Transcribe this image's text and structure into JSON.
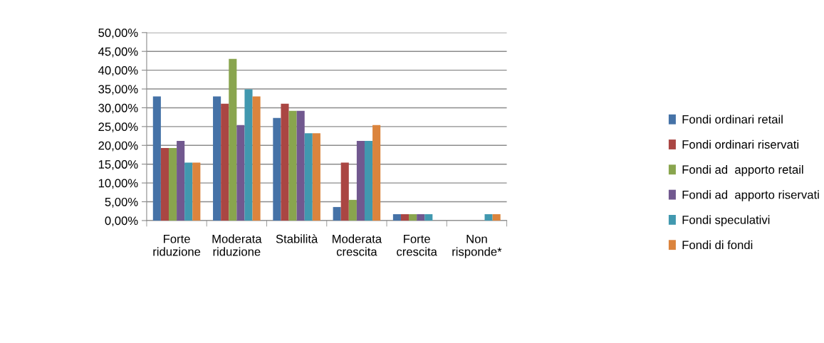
{
  "chart_data": {
    "type": "bar",
    "categories": [
      "Forte\nriduzione",
      "Moderata\nriduzione",
      "Stabilità",
      "Moderata\ncrescita",
      "Forte\ncrescita",
      "Non\nrisponde*"
    ],
    "series": [
      {
        "name": "Fondi ordinari retail",
        "color": "#4572a7",
        "values": [
          33.0,
          33.0,
          27.3,
          3.6,
          1.7,
          0
        ]
      },
      {
        "name": "Fondi ordinari riservati",
        "color": "#aa4643",
        "values": [
          19.3,
          31.1,
          31.1,
          15.4,
          1.7,
          0
        ]
      },
      {
        "name": "Fondi ad  apporto retail",
        "color": "#89a54e",
        "values": [
          19.3,
          43.0,
          29.2,
          5.5,
          1.7,
          0
        ]
      },
      {
        "name": "Fondi ad  apporto riservati",
        "color": "#71588f",
        "values": [
          21.2,
          25.4,
          29.2,
          21.2,
          1.7,
          0
        ]
      },
      {
        "name": "Fondi speculativi",
        "color": "#4198af",
        "values": [
          15.4,
          34.9,
          23.2,
          21.2,
          1.7,
          1.7
        ]
      },
      {
        "name": "Fondi di fondi",
        "color": "#db843d",
        "values": [
          15.4,
          33.0,
          23.2,
          25.4,
          0,
          1.7
        ]
      }
    ],
    "ylim": [
      0,
      50
    ],
    "yticks": [
      {
        "value": 0,
        "label": "0,00%"
      },
      {
        "value": 5,
        "label": "5,00%"
      },
      {
        "value": 10,
        "label": "10,00%"
      },
      {
        "value": 15,
        "label": "15,00%"
      },
      {
        "value": 20,
        "label": "20,00%"
      },
      {
        "value": 25,
        "label": "25,00%"
      },
      {
        "value": 30,
        "label": "30,00%"
      },
      {
        "value": 35,
        "label": "35,00%"
      },
      {
        "value": 40,
        "label": "40,00%"
      },
      {
        "value": 45,
        "label": "45,00%"
      },
      {
        "value": 50,
        "label": "50,00%"
      }
    ],
    "grid": "y",
    "legend": "right"
  }
}
